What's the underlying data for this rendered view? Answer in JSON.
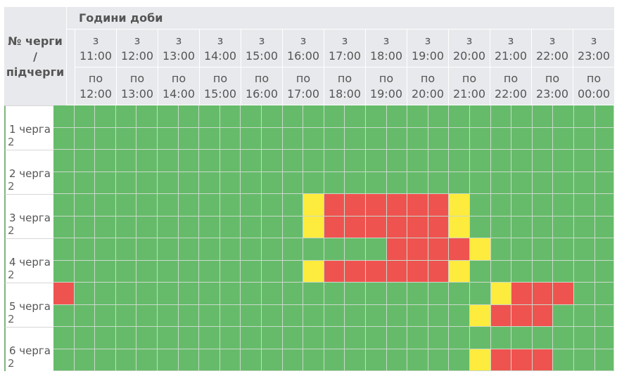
{
  "header": {
    "title": "Години доби",
    "queue_label": [
      "№ черги",
      "/",
      "підчерги"
    ],
    "from_prefix": "з",
    "to_prefix": "по",
    "columns": [
      {
        "from": "11:00",
        "to": "12:00"
      },
      {
        "from": "12:00",
        "to": "13:00"
      },
      {
        "from": "13:00",
        "to": "14:00"
      },
      {
        "from": "14:00",
        "to": "15:00"
      },
      {
        "from": "15:00",
        "to": "16:00"
      },
      {
        "from": "16:00",
        "to": "17:00"
      },
      {
        "from": "17:00",
        "to": "18:00"
      },
      {
        "from": "18:00",
        "to": "19:00"
      },
      {
        "from": "19:00",
        "to": "20:00"
      },
      {
        "from": "20:00",
        "to": "21:00"
      },
      {
        "from": "21:00",
        "to": "22:00"
      },
      {
        "from": "22:00",
        "to": "23:00"
      },
      {
        "from": "23:00",
        "to": "00:00"
      }
    ]
  },
  "rows": [
    {
      "label": "1 черга",
      "sub": "2"
    },
    {
      "label": "2 черга",
      "sub": "2"
    },
    {
      "label": "3 черга",
      "sub": "2"
    },
    {
      "label": "4 черга",
      "sub": "2"
    },
    {
      "label": "5 черга",
      "sub": "2"
    },
    {
      "label": "6 черга",
      "sub": "2"
    }
  ],
  "legend_colors": {
    "on": "#66bb6a",
    "off": "#ef5350",
    "possible": "#fdeb3d"
  },
  "schedule": [
    [
      "gggggggggggggggggggggggggggg",
      "gggggggggggggggggggggggggggg"
    ],
    [
      "gggggggggggggggggggggggggggg",
      "gggggggggggggggggggggggggggg"
    ],
    [
      "ggggggggggggyrrrrrryggggggggg",
      "ggggggggggggyrrrrrryggggggggg"
    ],
    [
      "ggggggggggggggggrrrrygggggggg",
      "ggggggggggggyrrrrrryggggggggg"
    ],
    [
      "rggggggggggggggggggggyrrrgggg",
      "ggggggggggggggggggggyrrrgggg"
    ],
    [
      "gggggggggggggggggggggggggggg",
      "ggggggggggggggggggggyrrrgggg"
    ]
  ]
}
